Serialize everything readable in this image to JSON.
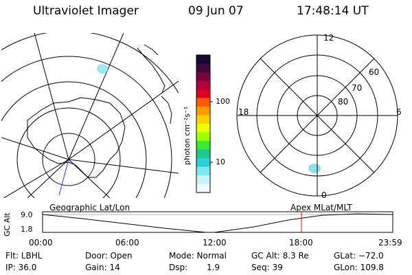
{
  "header": {
    "instrument": "Ultraviolet Imager",
    "date": "09 Jun 07",
    "time": "17:48:14 UT"
  },
  "colorbar": {
    "unit_label": "photon cm⁻²s⁻¹",
    "ticks": [
      "100",
      "10"
    ],
    "colors": [
      "#1a0830",
      "#3a0a3a",
      "#7a0040",
      "#b4003a",
      "#e00020",
      "#ff5a00",
      "#ff9a00",
      "#ffd000",
      "#e8ff00",
      "#9cff00",
      "#3ae838",
      "#1ac890",
      "#2ad0d8",
      "#7ce8f0",
      "#c8f4f8",
      "#f0fbfc"
    ]
  },
  "mlt_plot": {
    "hour_labels": [
      "12",
      "18",
      "6",
      "0"
    ],
    "lat_labels": [
      "60",
      "70",
      "80"
    ]
  },
  "timeline": {
    "left_label": "Geographic Lat/Lon",
    "right_label": "Apex MLat/MLT",
    "y_axis_label": "GC Alt",
    "y_ticks": [
      "9.0",
      "1.8"
    ],
    "x_ticks": [
      "00:00",
      "06:00",
      "12:00",
      "18:00",
      "23:59"
    ],
    "current_marker_time": "17:48",
    "marker_color": "#ff0000"
  },
  "status": {
    "filter": "Flt: LBHL",
    "ip": "IP: 36.0",
    "door": "Door: Open",
    "gain": "Gain: 14",
    "mode": "Mode: Normal",
    "dsp_label": "Dsp:",
    "dsp_value": "1.9",
    "gc_alt": "GC Alt: 8.3 Re",
    "seq": "Seq: 39",
    "glat": "GLat: −72.0",
    "glon": "GLon: 109.8"
  }
}
